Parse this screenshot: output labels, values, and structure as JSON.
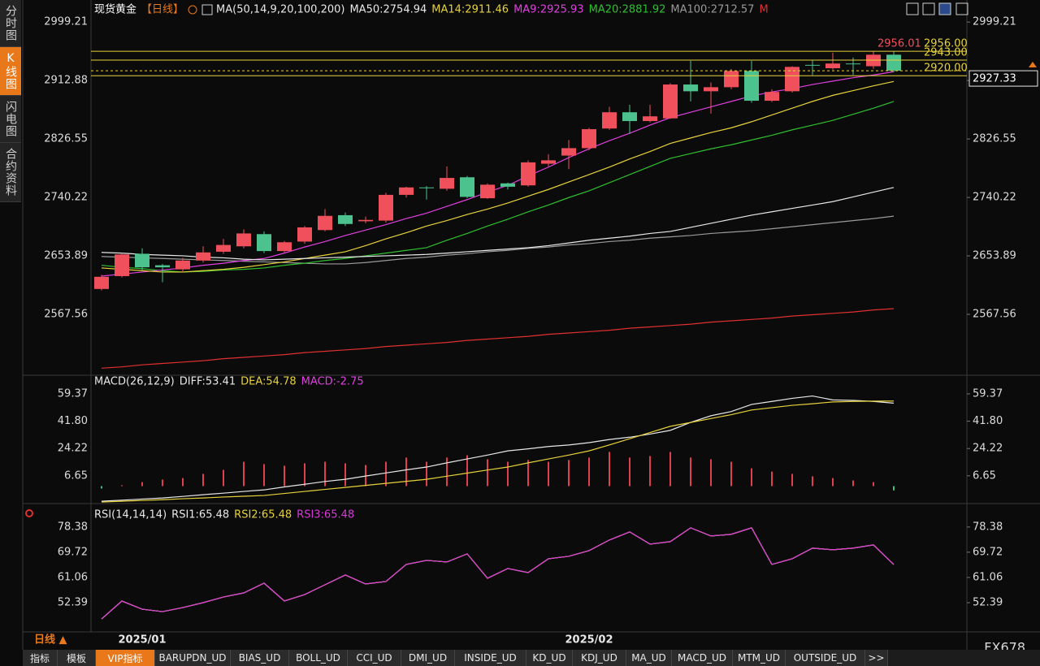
{
  "ui": {
    "side_tabs": [
      "分时图",
      "K线图",
      "闪电图",
      "合约资料"
    ],
    "period_button": "日线 ▲",
    "tabs": [
      "指标",
      "模板",
      "VIP指标",
      "BARUPDN_UD",
      "BIAS_UD",
      "BOLL_UD",
      "CCI_UD",
      "DMI_UD",
      "INSIDE_UD",
      "KD_UD",
      "KDJ_UD",
      "MA_UD",
      "MACD_UD",
      "MTM_UD",
      "OUTSIDE_UD",
      ">>"
    ],
    "watermark": "FX678"
  },
  "chart_data": [
    {
      "type": "candlestick",
      "title": "现货黄金",
      "period": "【日线】",
      "indicator": "MA(50,14,9,20,100,200)",
      "categories": [
        null,
        null,
        "2025/01",
        null,
        null,
        null,
        null,
        null,
        null,
        null,
        null,
        null,
        null,
        null,
        null,
        null,
        null,
        null,
        null,
        null,
        null,
        null,
        null,
        null,
        "2025/02",
        null,
        null,
        null,
        null,
        null,
        null,
        null,
        null,
        null,
        null,
        null,
        null,
        null,
        null,
        null
      ],
      "open": [
        2605,
        2624,
        2657,
        2640,
        2634,
        2647,
        2660,
        2668,
        2686,
        2661,
        2675,
        2692,
        2714,
        2705,
        2706,
        2744,
        2755,
        2753,
        2770,
        2739,
        2761,
        2758,
        2790,
        2802,
        2813,
        2842,
        2866,
        2853,
        2857,
        2907,
        2897,
        2903,
        2927,
        2883,
        2897,
        2936,
        2931,
        2938,
        2934,
        2951
      ],
      "high": [
        2626,
        2658,
        2665,
        2642,
        2651,
        2668,
        2679,
        2693,
        2690,
        2676,
        2698,
        2723,
        2718,
        2712,
        2747,
        2756,
        2757,
        2786,
        2772,
        2761,
        2762,
        2795,
        2804,
        2825,
        2843,
        2874,
        2877,
        2877,
        2909,
        2942,
        2910,
        2930,
        2942,
        2900,
        2934,
        2943,
        2954,
        2947,
        2956,
        2956.01
      ],
      "low": [
        2603,
        2622,
        2632,
        2615,
        2630,
        2644,
        2657,
        2665,
        2658,
        2659,
        2672,
        2690,
        2698,
        2702,
        2703,
        2740,
        2737,
        2750,
        2739,
        2738,
        2752,
        2756,
        2786,
        2782,
        2810,
        2840,
        2834,
        2851,
        2856,
        2882,
        2864,
        2900,
        2880,
        2881,
        2895,
        2921,
        2929,
        2921,
        2930,
        2925
      ],
      "close": [
        2623,
        2656,
        2637,
        2637,
        2647,
        2659,
        2670,
        2687,
        2661,
        2674,
        2696,
        2713,
        2701,
        2707,
        2744,
        2755,
        2754,
        2769,
        2741,
        2759,
        2756,
        2792,
        2795,
        2813,
        2841,
        2866,
        2853,
        2860,
        2907,
        2897,
        2903,
        2927,
        2883,
        2896,
        2933,
        2935,
        2938,
        2937,
        2951,
        2927.33
      ],
      "up_color": "#f0505c",
      "down_color": "#4cc38e",
      "series": [
        {
          "name": "MA50:2754.94",
          "color": "#e8e8e8",
          "values": [
            2659,
            2658,
            2656,
            2655,
            2654,
            2652,
            2651,
            2649,
            2648,
            2649,
            2650,
            2651,
            2652,
            2653,
            2654,
            2655,
            2656,
            2658,
            2660,
            2662,
            2664,
            2666,
            2669,
            2673,
            2677,
            2680,
            2683,
            2687,
            2690,
            2696,
            2702,
            2708,
            2714,
            2719,
            2724,
            2729,
            2734,
            2741,
            2748,
            2754.94
          ]
        },
        {
          "name": "MA14:2911.46",
          "color": "#e6d23c",
          "values": [
            2636,
            2634,
            2632,
            2630,
            2630,
            2632,
            2634,
            2637,
            2641,
            2645,
            2650,
            2655,
            2660,
            2669,
            2679,
            2688,
            2698,
            2706,
            2715,
            2723,
            2732,
            2742,
            2752,
            2763,
            2774,
            2785,
            2797,
            2808,
            2820,
            2828,
            2836,
            2843,
            2852,
            2862,
            2872,
            2882,
            2891,
            2898,
            2905,
            2911.46
          ]
        },
        {
          "name": "MA9:2925.93",
          "color": "#e040e0",
          "values": [
            2624,
            2627,
            2630,
            2633,
            2636,
            2640,
            2643,
            2647,
            2650,
            2658,
            2667,
            2675,
            2684,
            2692,
            2700,
            2709,
            2717,
            2727,
            2737,
            2748,
            2758,
            2772,
            2785,
            2799,
            2812,
            2824,
            2835,
            2847,
            2858,
            2866,
            2874,
            2882,
            2890,
            2896,
            2901,
            2907,
            2912,
            2917,
            2921,
            2925.93
          ]
        },
        {
          "name": "MA20:2881.92",
          "color": "#2fc02f",
          "values": [
            2640,
            2637,
            2635,
            2632,
            2630,
            2631,
            2633,
            2634,
            2636,
            2640,
            2643,
            2647,
            2650,
            2654,
            2658,
            2662,
            2666,
            2677,
            2687,
            2698,
            2708,
            2719,
            2729,
            2740,
            2750,
            2762,
            2774,
            2786,
            2798,
            2805,
            2812,
            2818,
            2825,
            2832,
            2840,
            2847,
            2854,
            2863,
            2872,
            2881.92
          ]
        },
        {
          "name": "MA100:2712.57",
          "color": "#9a9a9a",
          "values": [
            2653,
            2652,
            2651,
            2650,
            2649,
            2648,
            2647,
            2646,
            2645,
            2644,
            2643,
            2642,
            2642,
            2644,
            2647,
            2650,
            2652,
            2655,
            2657,
            2660,
            2662,
            2665,
            2667,
            2670,
            2672,
            2675,
            2677,
            2680,
            2682,
            2684,
            2687,
            2689,
            2691,
            2694,
            2697,
            2700,
            2703,
            2706,
            2709,
            2712.57
          ]
        },
        {
          "name": "M",
          "color": "#e03030",
          "values": [
            2488,
            2490,
            2493,
            2495,
            2497,
            2499,
            2502,
            2504,
            2506,
            2508,
            2511,
            2513,
            2515,
            2517,
            2520,
            2522,
            2524,
            2526,
            2529,
            2531,
            2533,
            2535,
            2538,
            2540,
            2542,
            2544,
            2547,
            2549,
            2551,
            2553,
            2556,
            2558,
            2560,
            2562,
            2565,
            2567,
            2569,
            2571,
            2574,
            2576
          ]
        }
      ],
      "price_lines": [
        {
          "value": 2956,
          "label": "2956.00"
        },
        {
          "value": 2943,
          "label": "2943.00"
        },
        {
          "value": 2920,
          "label": "2920.00"
        }
      ],
      "price_line_color": "#e6d23c",
      "high_label": 2956.01,
      "last_price": 2927.33,
      "ylim": [
        2480,
        3015
      ],
      "yticks": [
        2567.56,
        2653.89,
        2740.22,
        2826.55,
        2912.88,
        2999.21
      ]
    },
    {
      "type": "macd",
      "title": "MACD(26,12,9)",
      "series": [
        {
          "name": "DIFF:53.41",
          "color": "#e8e8e8",
          "values": [
            -9.7,
            -9.0,
            -8.3,
            -7.6,
            -6.6,
            -5.5,
            -4.5,
            -3.4,
            -2.4,
            -0.5,
            1.2,
            3.0,
            4.4,
            6.5,
            8.5,
            10.5,
            12.3,
            15,
            17.5,
            20,
            22.7,
            24,
            25.5,
            26.5,
            28,
            30,
            31.5,
            33.5,
            35.9,
            41,
            45.3,
            48,
            52.6,
            54.5,
            56.5,
            58,
            55.5,
            55.2,
            54.5,
            53.41
          ]
        },
        {
          "name": "DEA:54.78",
          "color": "#e6d23c",
          "values": [
            -10.2,
            -9.7,
            -9.2,
            -8.7,
            -8.1,
            -7.6,
            -7.0,
            -6.5,
            -6.0,
            -4.7,
            -3.4,
            -2.1,
            -0.8,
            0.5,
            1.8,
            3.1,
            4.4,
            6.4,
            8.4,
            10.4,
            12.3,
            15,
            17.5,
            20,
            22.7,
            26.5,
            30.5,
            34.5,
            38.5,
            41,
            43.5,
            46,
            49,
            50.5,
            52,
            53,
            54.2,
            54.5,
            54.7,
            54.78
          ]
        }
      ],
      "histogram": {
        "name": "MACD:-2.75",
        "color": "#e040e0",
        "up_color": "#e0404e",
        "down_color": "#3cc080",
        "values": [
          -1.5,
          0.6,
          2.6,
          4.2,
          5.2,
          7.9,
          10.5,
          15.7,
          14.2,
          13.1,
          14.7,
          15.7,
          14.7,
          13.6,
          15.7,
          18.4,
          15.7,
          18.4,
          19.9,
          17.3,
          15.7,
          16.8,
          15.7,
          16.8,
          18.4,
          22.0,
          18.4,
          19.4,
          22.0,
          18.4,
          17.3,
          15.7,
          11.5,
          9.4,
          7.9,
          6.3,
          5.2,
          3.7,
          2.6,
          -2.75
        ]
      },
      "ylim": [
        -11.2,
        63
      ],
      "yticks": [
        6.65,
        24.22,
        {
          "value": 41.8,
          "label": "41.80"
        },
        59.37
      ]
    },
    {
      "type": "line",
      "title": "RSI(14,14,14)",
      "series": [
        {
          "name": "RSI1:65.48",
          "color": "#e8e8e8",
          "values": [
            46.81,
            52.96,
            50.16,
            49.32,
            50.72,
            52.4,
            54.35,
            55.75,
            59.1,
            52.96,
            55.19,
            58.54,
            61.9,
            58.82,
            59.66,
            65.53,
            66.93,
            66.37,
            69.16,
            60.78,
            64.13,
            62.73,
            67.48,
            68.32,
            70.28,
            73.91,
            76.7,
            72.51,
            73.35,
            78.1,
            75.31,
            75.87,
            78.1,
            65.53,
            67.48,
            71.12,
            70.56,
            71.12,
            72.23,
            65.48
          ]
        },
        {
          "name": "RSI2:65.48",
          "color": "#e6d23c",
          "values": [
            46.81,
            52.96,
            50.16,
            49.32,
            50.72,
            52.4,
            54.35,
            55.75,
            59.1,
            52.96,
            55.19,
            58.54,
            61.9,
            58.82,
            59.66,
            65.53,
            66.93,
            66.37,
            69.16,
            60.78,
            64.13,
            62.73,
            67.48,
            68.32,
            70.28,
            73.91,
            76.7,
            72.51,
            73.35,
            78.1,
            75.31,
            75.87,
            78.1,
            65.53,
            67.48,
            71.12,
            70.56,
            71.12,
            72.23,
            65.48
          ]
        },
        {
          "name": "RSI3:65.48",
          "color": "#d838d8",
          "values": [
            46.81,
            52.96,
            50.16,
            49.32,
            50.72,
            52.4,
            54.35,
            55.75,
            59.1,
            52.96,
            55.19,
            58.54,
            61.9,
            58.82,
            59.66,
            65.53,
            66.93,
            66.37,
            69.16,
            60.78,
            64.13,
            62.73,
            67.48,
            68.32,
            70.28,
            73.91,
            76.7,
            72.51,
            73.35,
            78.1,
            75.31,
            75.87,
            78.1,
            65.53,
            67.48,
            71.12,
            70.56,
            71.12,
            72.23,
            65.48
          ]
        }
      ],
      "ylim": [
        43.2,
        84.2
      ],
      "yticks": [
        52.39,
        61.06,
        69.72,
        78.38
      ]
    }
  ]
}
